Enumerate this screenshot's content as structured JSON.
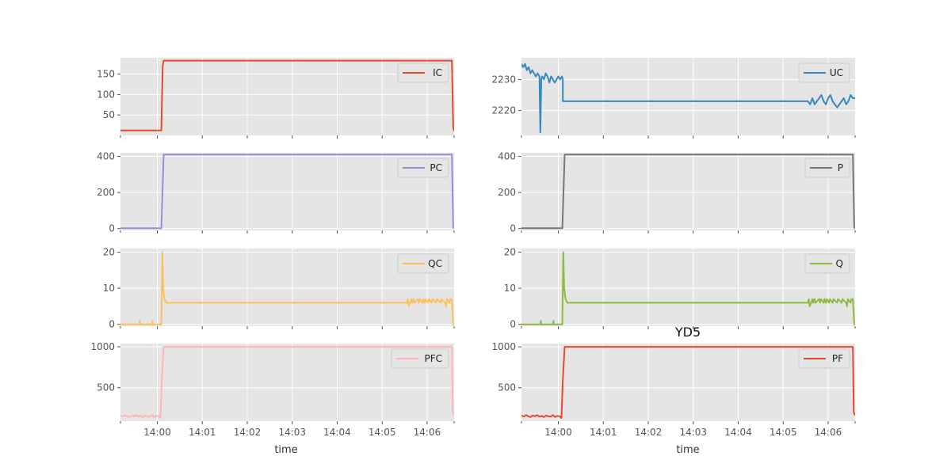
{
  "figure": {
    "title": "YD5",
    "xlabel": "time",
    "x_ticks": [
      "14:00",
      "14:01",
      "14:02",
      "14:03",
      "14:04",
      "14:05",
      "14:06"
    ],
    "x_tick_minutes": [
      0,
      1,
      2,
      3,
      4,
      5,
      6
    ],
    "xlim_minutes": [
      -0.82,
      6.6
    ]
  },
  "chart_data": [
    {
      "type": "line",
      "panel": "IC",
      "series": [
        {
          "name": "IC",
          "color": "#e24a33",
          "x": [
            -0.82,
            0.09,
            0.12,
            0.14,
            6.55,
            6.58,
            6.6
          ],
          "y": [
            12,
            12,
            170,
            183,
            183,
            20,
            10
          ]
        }
      ],
      "ylim": [
        0,
        190
      ],
      "yticks": [
        50,
        100,
        150
      ],
      "legend": "top-right"
    },
    {
      "type": "line",
      "panel": "UC",
      "series": [
        {
          "name": "UC",
          "color": "#348abd",
          "x": [
            -0.82,
            -0.78,
            -0.74,
            -0.7,
            -0.66,
            -0.62,
            -0.58,
            -0.54,
            -0.5,
            -0.46,
            -0.42,
            -0.4,
            -0.4,
            -0.38,
            -0.36,
            -0.32,
            -0.28,
            -0.24,
            -0.2,
            -0.16,
            -0.12,
            -0.08,
            -0.04,
            0.0,
            0.04,
            0.08,
            0.1,
            0.1,
            0.16,
            5.55,
            5.6,
            5.65,
            5.7,
            5.75,
            5.8,
            5.85,
            5.9,
            5.95,
            6.0,
            6.05,
            6.1,
            6.15,
            6.2,
            6.25,
            6.3,
            6.35,
            6.4,
            6.45,
            6.5,
            6.55,
            6.6
          ],
          "y": [
            2235,
            2234,
            2235,
            2233,
            2234,
            2232,
            2233,
            2232,
            2231,
            2232,
            2231,
            2213,
            2213,
            2230,
            2231,
            2230,
            2232,
            2231,
            2229,
            2231,
            2230,
            2229,
            2230,
            2231,
            2230,
            2231,
            2230,
            2223,
            2223,
            2223,
            2222,
            2224,
            2222,
            2223,
            2224,
            2225,
            2223,
            2222,
            2224,
            2225,
            2223,
            2222,
            2221,
            2222,
            2223,
            2224,
            2222,
            2223,
            2225,
            2224,
            2224
          ]
        }
      ],
      "ylim": [
        2212,
        2237
      ],
      "yticks": [
        2220,
        2230
      ],
      "legend": "top-right"
    },
    {
      "type": "line",
      "panel": "PC",
      "series": [
        {
          "name": "PC",
          "color": "#988ed5",
          "x": [
            -0.82,
            0.09,
            0.14,
            6.55,
            6.58,
            6.6
          ],
          "y": [
            2,
            2,
            410,
            410,
            5,
            2
          ]
        }
      ],
      "ylim": [
        -10,
        420
      ],
      "yticks": [
        0,
        200,
        400
      ],
      "legend": "top-right"
    },
    {
      "type": "line",
      "panel": "P",
      "series": [
        {
          "name": "P",
          "color": "#777777",
          "x": [
            -0.82,
            0.09,
            0.14,
            6.55,
            6.58,
            6.6
          ],
          "y": [
            2,
            2,
            410,
            410,
            5,
            2
          ]
        }
      ],
      "ylim": [
        -10,
        420
      ],
      "yticks": [
        0,
        200,
        400
      ],
      "legend": "top-right"
    },
    {
      "type": "line",
      "panel": "QC",
      "series": [
        {
          "name": "QC",
          "color": "#fbc15e",
          "x": [
            -0.82,
            -0.4,
            -0.39,
            -0.38,
            -0.12,
            -0.11,
            -0.1,
            0.09,
            0.11,
            0.13,
            0.16,
            0.2,
            5.55,
            5.57,
            5.59,
            5.65,
            5.67,
            5.7,
            5.72,
            5.8,
            5.82,
            5.84,
            5.9,
            5.92,
            5.95,
            5.97,
            6.02,
            6.04,
            6.1,
            6.12,
            6.2,
            6.22,
            6.3,
            6.32,
            6.4,
            6.42,
            6.44,
            6.5,
            6.52,
            6.55,
            6.58,
            6.6
          ],
          "y": [
            0,
            0,
            1,
            0,
            0,
            1,
            0,
            0,
            20,
            10,
            7,
            6,
            6,
            7,
            5,
            7,
            6,
            7,
            6,
            7,
            6,
            7,
            6,
            7,
            6,
            7,
            6,
            7,
            6,
            7,
            6,
            7,
            6,
            7,
            6,
            5,
            7,
            6,
            7,
            7,
            0,
            0
          ]
        }
      ],
      "ylim": [
        -0.5,
        21
      ],
      "yticks": [
        0,
        10,
        20
      ],
      "legend": "top-right"
    },
    {
      "type": "line",
      "panel": "Q",
      "series": [
        {
          "name": "Q",
          "color": "#8eba42",
          "x": [
            -0.82,
            -0.4,
            -0.39,
            -0.38,
            -0.12,
            -0.11,
            -0.1,
            0.09,
            0.11,
            0.13,
            0.16,
            0.2,
            5.55,
            5.57,
            5.59,
            5.65,
            5.67,
            5.7,
            5.72,
            5.8,
            5.82,
            5.84,
            5.9,
            5.92,
            5.95,
            5.97,
            6.02,
            6.04,
            6.1,
            6.12,
            6.2,
            6.22,
            6.3,
            6.32,
            6.4,
            6.42,
            6.44,
            6.5,
            6.52,
            6.55,
            6.58,
            6.6
          ],
          "y": [
            0,
            0,
            1,
            0,
            0,
            1,
            0,
            0,
            20,
            10,
            7,
            6,
            6,
            7,
            5,
            7,
            6,
            7,
            6,
            7,
            6,
            7,
            6,
            7,
            6,
            7,
            6,
            7,
            6,
            7,
            6,
            7,
            6,
            7,
            6,
            5,
            7,
            6,
            7,
            7,
            0,
            0
          ]
        }
      ],
      "ylim": [
        -0.5,
        21
      ],
      "yticks": [
        0,
        10,
        20
      ],
      "legend": "top-right"
    },
    {
      "type": "line",
      "panel": "PFC",
      "series": [
        {
          "name": "PFC",
          "color": "#ffb5b8",
          "x": [
            -0.82,
            -0.77,
            -0.72,
            -0.67,
            -0.62,
            -0.57,
            -0.52,
            -0.47,
            -0.42,
            -0.37,
            -0.32,
            -0.27,
            -0.22,
            -0.17,
            -0.12,
            -0.07,
            -0.02,
            0.03,
            0.07,
            0.1,
            0.14,
            6.55,
            6.57,
            6.6
          ],
          "y": [
            160,
            145,
            165,
            150,
            140,
            160,
            150,
            165,
            145,
            155,
            140,
            160,
            150,
            145,
            165,
            140,
            155,
            150,
            130,
            600,
            1000,
            1000,
            200,
            160
          ]
        }
      ],
      "ylim": [
        90,
        1040
      ],
      "yticks": [
        500,
        1000
      ],
      "legend": "top-right"
    },
    {
      "type": "line",
      "panel": "PF",
      "series": [
        {
          "name": "PF",
          "color": "#e24a33",
          "x": [
            -0.82,
            -0.77,
            -0.72,
            -0.67,
            -0.62,
            -0.57,
            -0.52,
            -0.47,
            -0.42,
            -0.37,
            -0.32,
            -0.27,
            -0.22,
            -0.17,
            -0.12,
            -0.07,
            -0.02,
            0.03,
            0.07,
            0.1,
            0.14,
            6.55,
            6.57,
            6.6
          ],
          "y": [
            160,
            145,
            165,
            150,
            140,
            160,
            150,
            165,
            145,
            155,
            140,
            160,
            150,
            145,
            165,
            140,
            155,
            150,
            130,
            600,
            1000,
            1000,
            200,
            160
          ]
        }
      ],
      "ylim": [
        90,
        1040
      ],
      "yticks": [
        500,
        1000
      ],
      "legend": "top-right"
    }
  ]
}
